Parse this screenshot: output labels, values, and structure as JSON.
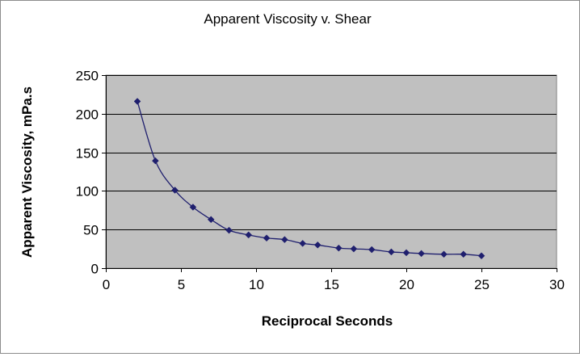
{
  "chart_data": {
    "type": "scatter",
    "title": "Apparent Viscosity v. Shear",
    "xlabel": "Reciprocal Seconds",
    "ylabel": "Apparent Viscosity, mPa.s",
    "xlim": [
      0,
      30
    ],
    "ylim": [
      0,
      250
    ],
    "xticks": [
      0,
      5,
      10,
      15,
      20,
      25,
      30
    ],
    "yticks": [
      0,
      50,
      100,
      150,
      200,
      250
    ],
    "grid": "horizontal",
    "smoothed_line": true,
    "legend": "none",
    "colors": {
      "plot_background": "#c0c0c0",
      "series": "#1f1f6e",
      "gridline": "#000000"
    },
    "series": [
      {
        "x": [
          2.1,
          3.3,
          4.6,
          5.8,
          7.0,
          8.2,
          9.5,
          10.7,
          11.9,
          13.1,
          14.1,
          15.5,
          16.5,
          17.7,
          19.0,
          20.0,
          21.0,
          22.5,
          23.8,
          25.0
        ],
        "y": [
          216,
          139,
          101,
          79,
          63,
          49,
          43,
          39,
          37,
          32,
          30,
          26,
          25,
          24,
          21,
          20,
          19,
          18,
          18,
          16
        ]
      }
    ]
  }
}
